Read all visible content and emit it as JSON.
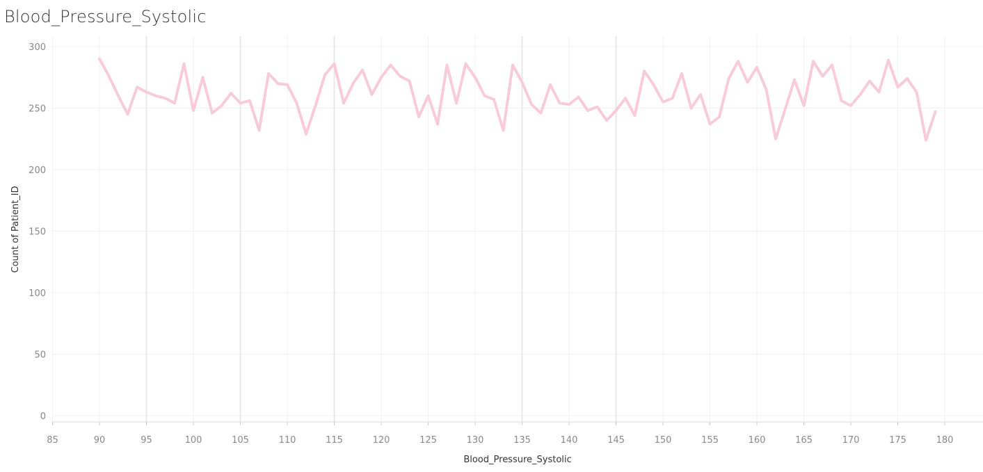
{
  "chart_data": {
    "type": "line",
    "title": "Blood_Pressure_Systolic",
    "xlabel": "Blood_Pressure_Systolic",
    "ylabel": "Count of Patient_ID",
    "xlim": [
      85,
      182
    ],
    "ylim": [
      0,
      300
    ],
    "x_ticks": [
      85,
      90,
      95,
      100,
      105,
      110,
      115,
      120,
      125,
      130,
      135,
      140,
      145,
      150,
      155,
      160,
      165,
      170,
      175,
      180
    ],
    "y_ticks": [
      0,
      50,
      100,
      150,
      200,
      250,
      300
    ],
    "grid": true,
    "series": [
      {
        "color": "#f8cbdc",
        "x": [
          90,
          91,
          92,
          93,
          94,
          95,
          96,
          97,
          98,
          99,
          100,
          101,
          102,
          103,
          104,
          105,
          106,
          107,
          108,
          109,
          110,
          111,
          112,
          113,
          114,
          115,
          116,
          117,
          118,
          119,
          120,
          121,
          122,
          123,
          124,
          125,
          126,
          127,
          128,
          129,
          130,
          131,
          132,
          133,
          134,
          135,
          136,
          137,
          138,
          139,
          140,
          141,
          142,
          143,
          144,
          145,
          146,
          147,
          148,
          149,
          150,
          151,
          152,
          153,
          154,
          155,
          156,
          157,
          158,
          159,
          160,
          161,
          162,
          163,
          164,
          165,
          166,
          167,
          168,
          169,
          170,
          171,
          172,
          173,
          174,
          175,
          176,
          177,
          178,
          179
        ],
        "values": [
          290,
          276,
          260,
          245,
          267,
          263,
          260,
          258,
          254,
          286,
          248,
          275,
          246,
          252,
          262,
          254,
          256,
          232,
          278,
          270,
          269,
          254,
          229,
          252,
          277,
          286,
          254,
          270,
          281,
          261,
          275,
          285,
          276,
          272,
          243,
          260,
          237,
          285,
          254,
          286,
          275,
          260,
          257,
          232,
          285,
          271,
          253,
          246,
          269,
          254,
          253,
          259,
          248,
          251,
          240,
          248,
          258,
          244,
          280,
          269,
          255,
          258,
          278,
          250,
          261,
          237,
          243,
          274,
          288,
          271,
          283,
          265,
          225,
          249,
          273,
          252,
          288,
          276,
          285,
          256,
          252,
          261,
          272,
          263,
          289,
          267,
          274,
          263,
          224,
          247
        ]
      }
    ]
  }
}
